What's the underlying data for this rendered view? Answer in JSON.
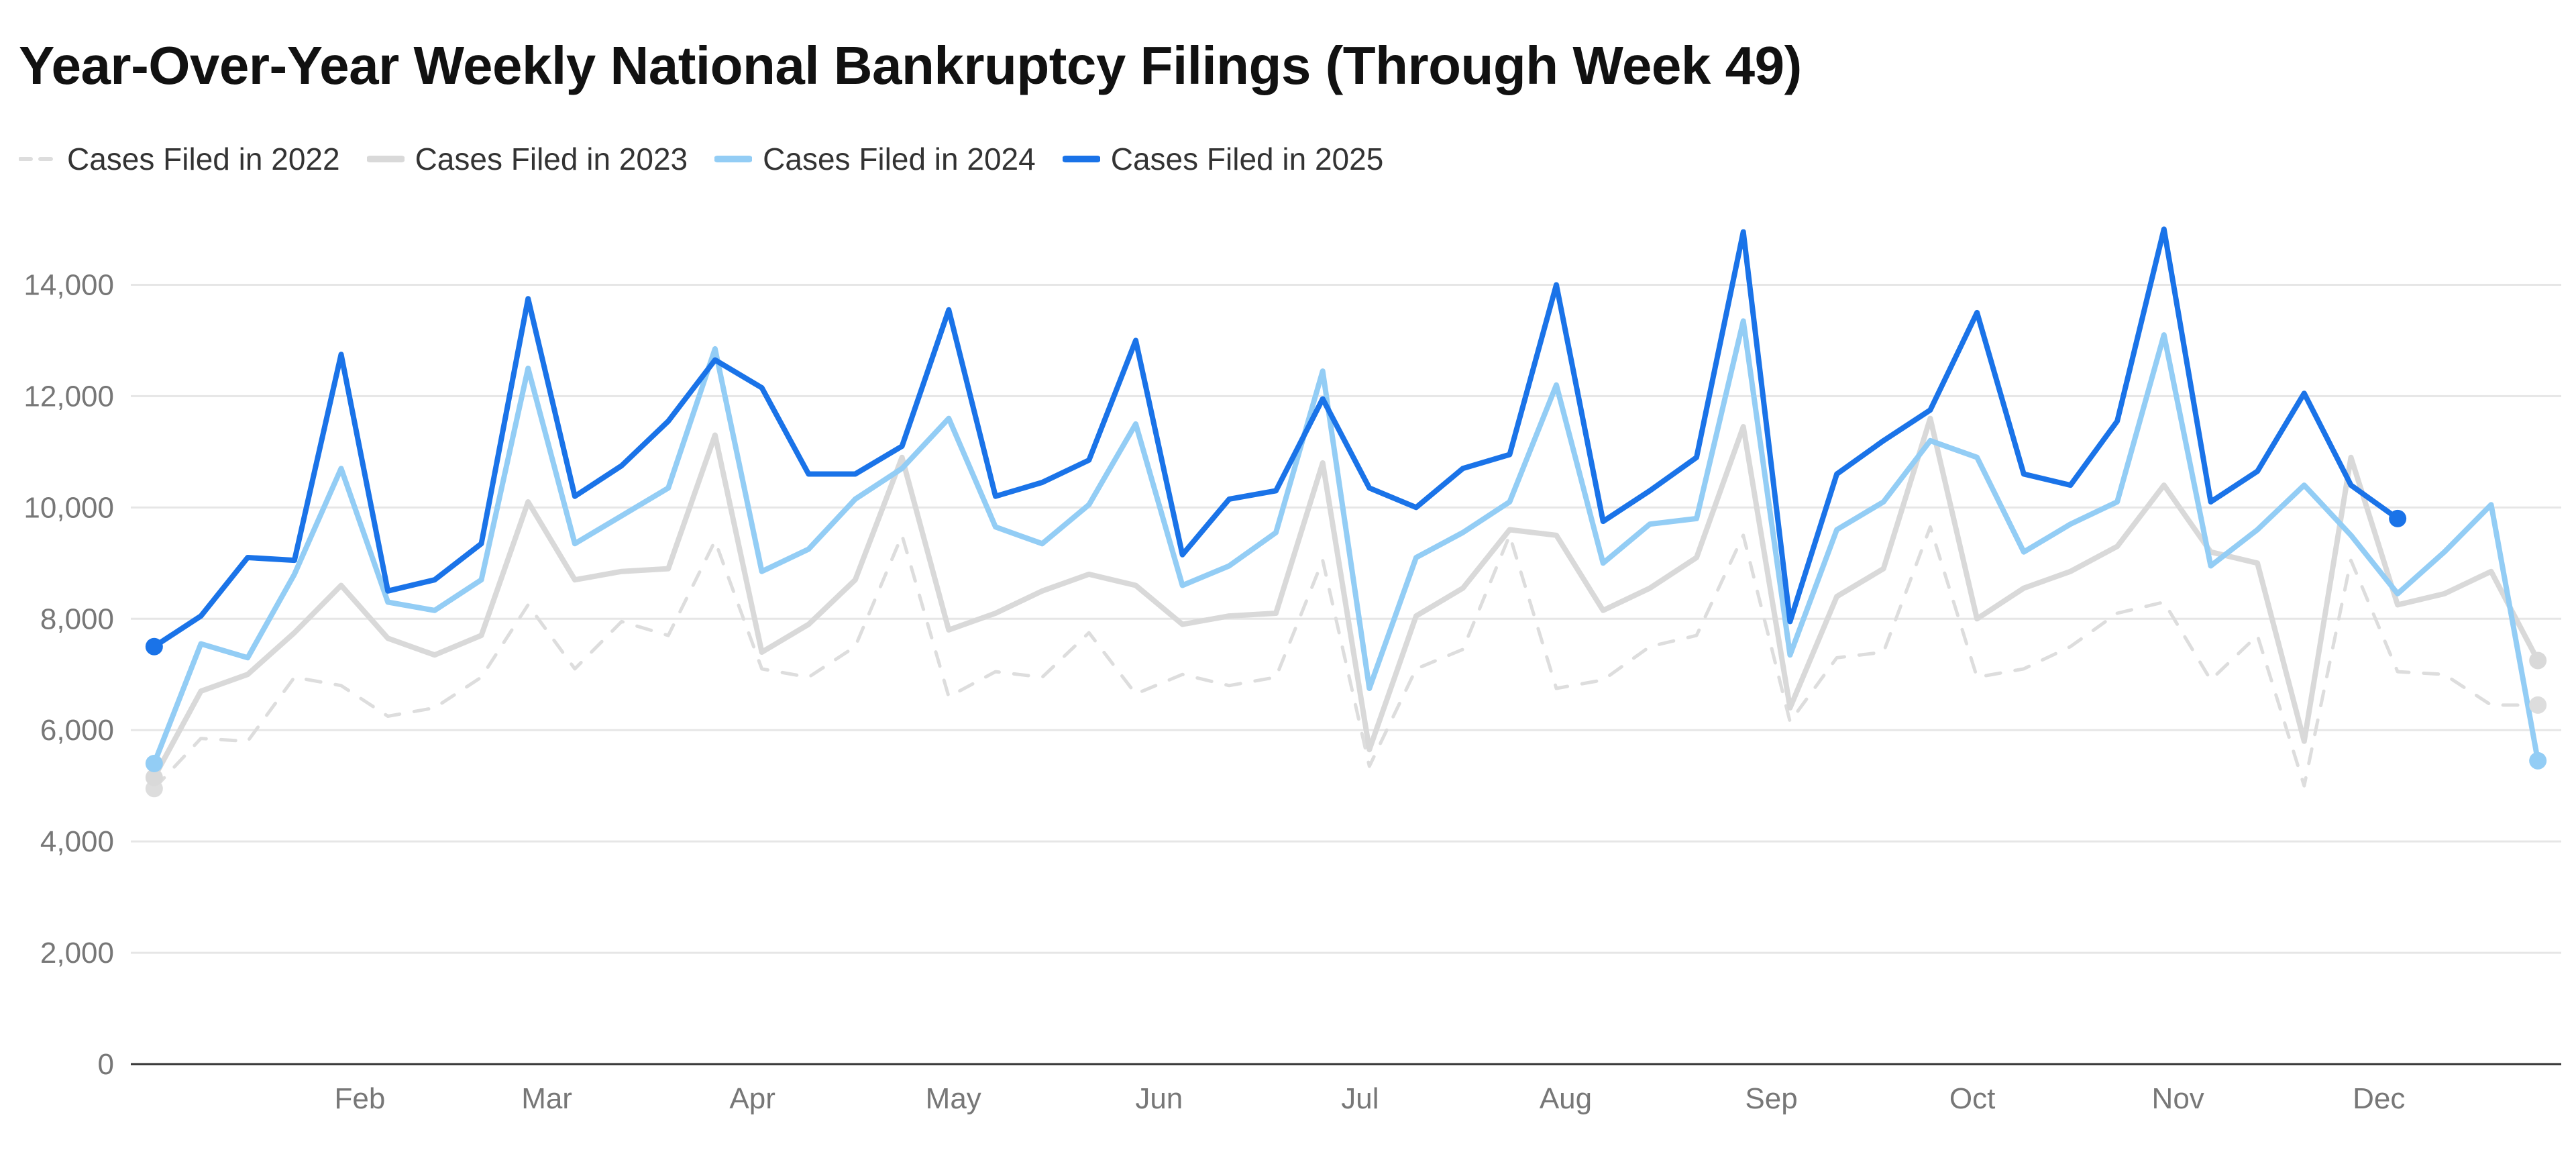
{
  "chart_data": {
    "type": "line",
    "title": "Year-Over-Year Weekly National Bankruptcy Filings (Through Week 49)",
    "xlabel": "",
    "ylabel": "",
    "ylim": [
      0,
      15500
    ],
    "yticks": [
      0,
      2000,
      4000,
      6000,
      8000,
      10000,
      12000,
      14000
    ],
    "y_tick_labels": [
      "0",
      "2,000",
      "4,000",
      "6,000",
      "8,000",
      "10,000",
      "12,000",
      "14,000"
    ],
    "month_labels": [
      "Feb",
      "Mar",
      "Apr",
      "May",
      "Jun",
      "Jul",
      "Aug",
      "Sep",
      "Oct",
      "Nov",
      "Dec"
    ],
    "month_positions": [
      5.4,
      9.4,
      13.8,
      18.1,
      22.5,
      26.8,
      31.2,
      35.6,
      39.9,
      44.3,
      48.6
    ],
    "x_range": [
      0.5,
      52.5
    ],
    "grid": true,
    "legend_position": "top-left",
    "series": [
      {
        "name": "Cases Filed in 2022",
        "color": "#dddddd",
        "style": "dashed",
        "values": [
          4950,
          5850,
          5800,
          6950,
          6800,
          6250,
          6400,
          6950,
          8250,
          7100,
          7950,
          7700,
          9400,
          7100,
          6950,
          7500,
          9500,
          6600,
          7050,
          6950,
          7750,
          6650,
          7000,
          6800,
          6950,
          9050,
          5350,
          7100,
          7450,
          9500,
          6750,
          6900,
          7500,
          7700,
          9500,
          6150,
          7300,
          7400,
          9650,
          6950,
          7100,
          7500,
          8100,
          8300,
          6900,
          7700,
          5000,
          9050,
          7050,
          7000,
          6450,
          6450
        ]
      },
      {
        "name": "Cases Filed in 2023",
        "color": "#d9d9d9",
        "style": "solid",
        "values": [
          5150,
          6700,
          7000,
          7750,
          8600,
          7650,
          7350,
          7700,
          10100,
          8700,
          8850,
          8900,
          11300,
          7400,
          7900,
          8700,
          10900,
          7800,
          8100,
          8500,
          8800,
          8600,
          7900,
          8050,
          8100,
          10800,
          5650,
          8050,
          8550,
          9600,
          9500,
          8150,
          8550,
          9100,
          11450,
          6400,
          8400,
          8900,
          11600,
          8000,
          8550,
          8850,
          9300,
          10400,
          9200,
          9000,
          5800,
          10900,
          8250,
          8450,
          8850,
          7250
        ]
      },
      {
        "name": "Cases Filed in 2024",
        "color": "#93cdf5",
        "style": "solid",
        "values": [
          5400,
          7550,
          7300,
          8800,
          10700,
          8300,
          8150,
          8700,
          12500,
          9350,
          9850,
          10350,
          12850,
          8850,
          9250,
          10150,
          10700,
          11600,
          9650,
          9350,
          10050,
          11500,
          8600,
          8950,
          9550,
          12450,
          6750,
          9100,
          9550,
          10100,
          12200,
          9000,
          9700,
          9800,
          13350,
          7350,
          9600,
          10100,
          11200,
          10900,
          9200,
          9700,
          10100,
          13100,
          8950,
          9600,
          10400,
          9500,
          8450,
          9200,
          10050,
          5450
        ]
      },
      {
        "name": "Cases Filed in 2025",
        "color": "#1a73e8",
        "style": "solid",
        "values": [
          7500,
          8050,
          9100,
          9050,
          12750,
          8500,
          8700,
          9350,
          13750,
          10200,
          10750,
          11550,
          12650,
          12150,
          10600,
          10600,
          11100,
          13550,
          10200,
          10450,
          10850,
          13000,
          9150,
          10150,
          10300,
          11950,
          10350,
          10000,
          10700,
          10950,
          14000,
          9750,
          10300,
          10900,
          14950,
          7950,
          10600,
          11200,
          11750,
          13500,
          10600,
          10400,
          11550,
          15000,
          10100,
          10650,
          12050,
          10400,
          9800
        ]
      }
    ]
  }
}
